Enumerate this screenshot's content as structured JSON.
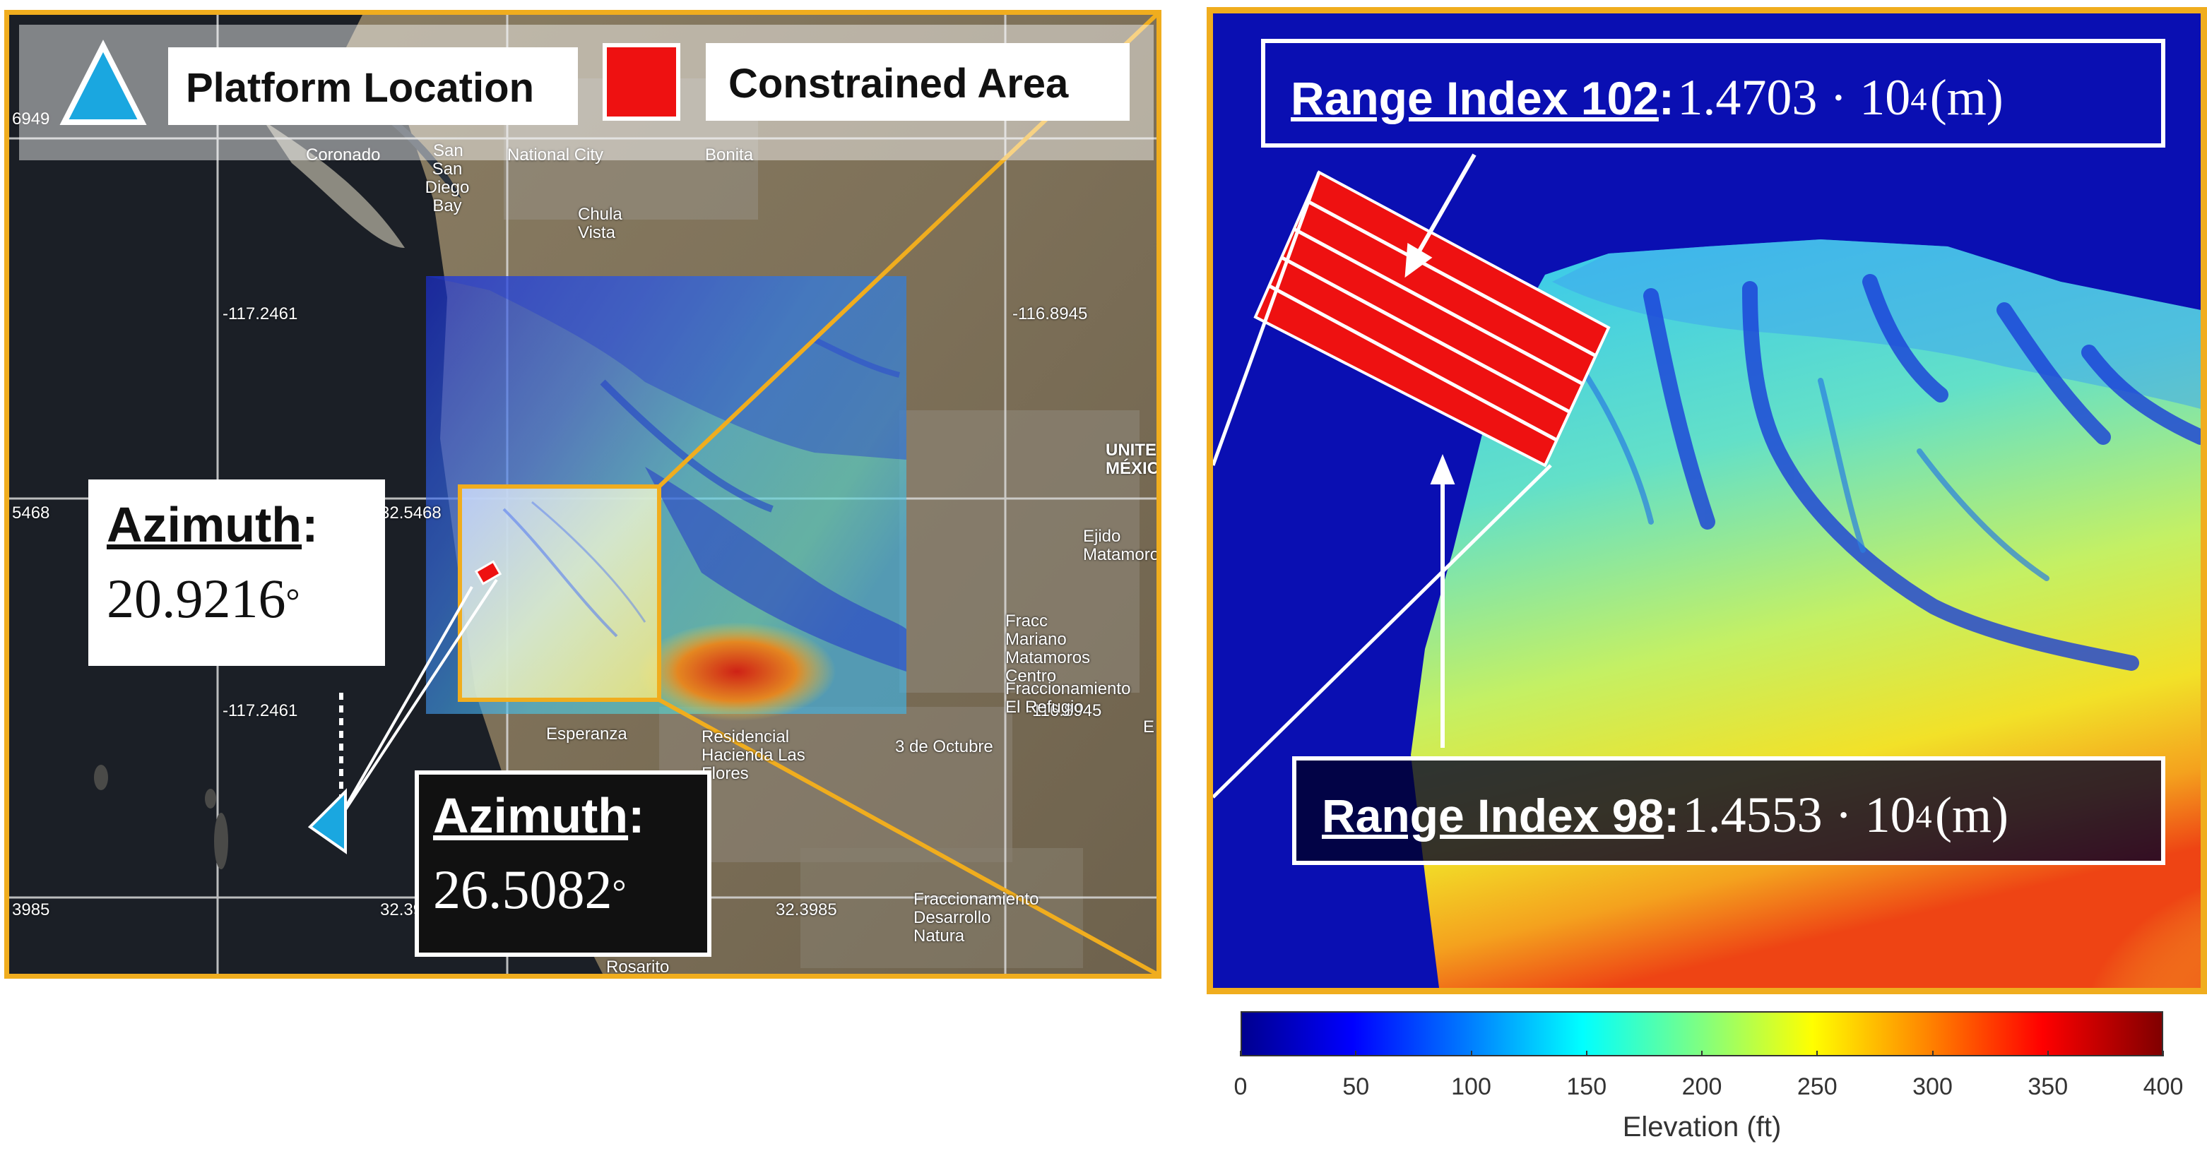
{
  "legend": {
    "platform_label": "Platform Location",
    "constrained_label": "Constrained Area"
  },
  "map": {
    "azimuth_1_title": "Azimuth",
    "azimuth_1_colon": ":",
    "azimuth_1_value": "20.9216",
    "azimuth_2_title": "Azimuth",
    "azimuth_2_colon": ":",
    "azimuth_2_value": "26.5082",
    "degree_symbol": "°",
    "coords": {
      "tl_lon": "-117.2461",
      "tr_lon": "-116.8945",
      "bl_lon": "-117.2461",
      "br_lon": "-116.8945",
      "lat_mid_left": "5468",
      "lat_mid_center": "32.5468",
      "lat_bottom_left": "3985",
      "lat_bottom_center": "32.3985",
      "lat_bottom_right": "32.3985",
      "top_left_partial": "6949"
    },
    "places": {
      "san_diego_bay": "San Diego Bay",
      "chula_vista": "Chula Vista",
      "national_city": "National City",
      "bonita": "Bonita",
      "coronado": "Coronado",
      "san": "San",
      "united_mexico": "UNITE MÉXIC",
      "ejido": "Ejido Matamoros",
      "fracc_mariano": "Fracc Mariano Matamoros Centro",
      "fraccionamiento": "Fraccionamiento El Refugio",
      "residencial": "Residencial Hacienda Las Flores",
      "esperanza": "Esperanza",
      "octubre": "3 de Octubre",
      "desarrollo": "Fraccionamiento Desarrollo Natura",
      "rosarito": "Parcelas Rosarito",
      "e": "E"
    }
  },
  "zoom": {
    "range1_title": "Range Index 102",
    "range1_colon": ":",
    "range1_value": "1.4703 · 10",
    "range1_exp": "4",
    "range1_unit": "(m)",
    "range2_title": "Range Index 98",
    "range2_colon": ":",
    "range2_value": "1.4553 · 10",
    "range2_exp": "4",
    "range2_unit": "(m)"
  },
  "colorbar": {
    "label": "Elevation (ft)",
    "ticks": [
      "0",
      "50",
      "100",
      "150",
      "200",
      "250",
      "300",
      "350",
      "400"
    ],
    "min": 0,
    "max": 400,
    "colormap": "jet"
  },
  "colors": {
    "frame": "#f0ad1e",
    "platform": "#1aa7e0",
    "constrained": "#ee1111",
    "background_low": "#0a0fb2"
  }
}
